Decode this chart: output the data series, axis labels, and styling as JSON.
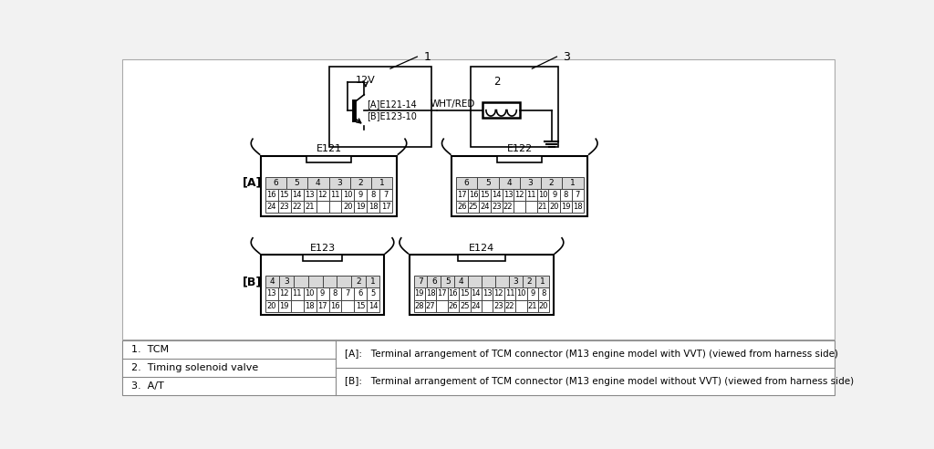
{
  "bg_color": "#f2f2f2",
  "diagram_bg": "#ffffff",
  "label1": "1",
  "label2": "2",
  "label3": "3",
  "labelA": "[A]",
  "labelB": "[B]",
  "label_12v": "12V",
  "label_conn1": "[A]E121-14",
  "label_conn2": "[B]E123-10",
  "wire_label": "WHT/RED",
  "E121_label": "E121",
  "E122_label": "E122",
  "E123_label": "E123",
  "E124_label": "E124",
  "E121_row1": [
    "6",
    "5",
    "4",
    "3",
    "2",
    "1"
  ],
  "E121_row2": [
    "16",
    "15",
    "14",
    "13",
    "12",
    "11",
    "10",
    "9",
    "8",
    "7"
  ],
  "E121_row3": [
    "24",
    "23",
    "22",
    "21",
    "",
    "",
    "20",
    "19",
    "18",
    "17"
  ],
  "E122_row1": [
    "6",
    "5",
    "4",
    "3",
    "2",
    "1"
  ],
  "E122_row2": [
    "17",
    "16",
    "15",
    "14",
    "13",
    "12",
    "11",
    "10",
    "9",
    "8",
    "7"
  ],
  "E122_row3": [
    "26",
    "25",
    "24",
    "23",
    "22",
    "",
    "",
    "21",
    "20",
    "19",
    "18"
  ],
  "E123_row1": [
    "4",
    "3",
    "",
    "",
    "",
    "",
    "2",
    "1"
  ],
  "E123_row2": [
    "13",
    "12",
    "11",
    "10",
    "9",
    "8",
    "7",
    "6",
    "5"
  ],
  "E123_row3": [
    "20",
    "19",
    "",
    "18",
    "17",
    "16",
    "",
    "15",
    "14"
  ],
  "E124_row1": [
    "7",
    "6",
    "5",
    "4",
    "",
    "",
    "",
    "3",
    "2",
    "1"
  ],
  "E124_row2": [
    "19",
    "18",
    "17",
    "16",
    "15",
    "14",
    "13",
    "12",
    "11",
    "10",
    "9",
    "8"
  ],
  "E124_row3": [
    "28",
    "27",
    "",
    "26",
    "25",
    "24",
    "",
    "23",
    "22",
    "",
    "21",
    "20"
  ],
  "footer_items": [
    [
      "1.  TCM"
    ],
    [
      "2.  Timing solenoid valve"
    ],
    [
      "3.  A/T"
    ]
  ],
  "footer_right": [
    "[A]:   Terminal arrangement of TCM connector (M13 engine model with VVT) (viewed from harness side)",
    "[B]:   Terminal arrangement of TCM connector (M13 engine model without VVT) (viewed from harness side)"
  ]
}
